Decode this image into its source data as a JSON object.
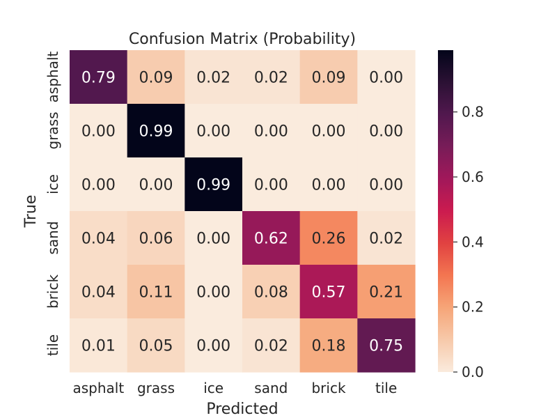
{
  "chart_data": {
    "type": "heatmap",
    "title": "Confusion Matrix (Probability)",
    "xlabel": "Predicted",
    "ylabel": "True",
    "x_categories": [
      "asphalt",
      "grass",
      "ice",
      "sand",
      "brick",
      "tile"
    ],
    "y_categories": [
      "asphalt",
      "grass",
      "ice",
      "sand",
      "brick",
      "tile"
    ],
    "values": [
      [
        0.79,
        0.09,
        0.02,
        0.02,
        0.09,
        0.0
      ],
      [
        0.0,
        0.99,
        0.0,
        0.0,
        0.0,
        0.0
      ],
      [
        0.0,
        0.0,
        0.99,
        0.0,
        0.0,
        0.0
      ],
      [
        0.04,
        0.06,
        0.0,
        0.62,
        0.26,
        0.02
      ],
      [
        0.04,
        0.11,
        0.0,
        0.08,
        0.57,
        0.21
      ],
      [
        0.01,
        0.05,
        0.0,
        0.02,
        0.18,
        0.75
      ]
    ],
    "value_labels": [
      [
        "0.79",
        "0.09",
        "0.02",
        "0.02",
        "0.09",
        "0.00"
      ],
      [
        "0.00",
        "0.99",
        "0.00",
        "0.00",
        "0.00",
        "0.00"
      ],
      [
        "0.00",
        "0.00",
        "0.99",
        "0.00",
        "0.00",
        "0.00"
      ],
      [
        "0.04",
        "0.06",
        "0.00",
        "0.62",
        "0.26",
        "0.02"
      ],
      [
        "0.04",
        "0.11",
        "0.00",
        "0.08",
        "0.57",
        "0.21"
      ],
      [
        "0.01",
        "0.05",
        "0.00",
        "0.02",
        "0.18",
        "0.75"
      ]
    ],
    "colormap": "rocket_r",
    "colorbar": {
      "vmin": 0.0,
      "vmax": 0.99,
      "ticks": [
        0.0,
        0.2,
        0.4,
        0.6,
        0.8
      ],
      "tick_labels": [
        "0.0",
        "0.2",
        "0.4",
        "0.6",
        "0.8"
      ]
    }
  }
}
